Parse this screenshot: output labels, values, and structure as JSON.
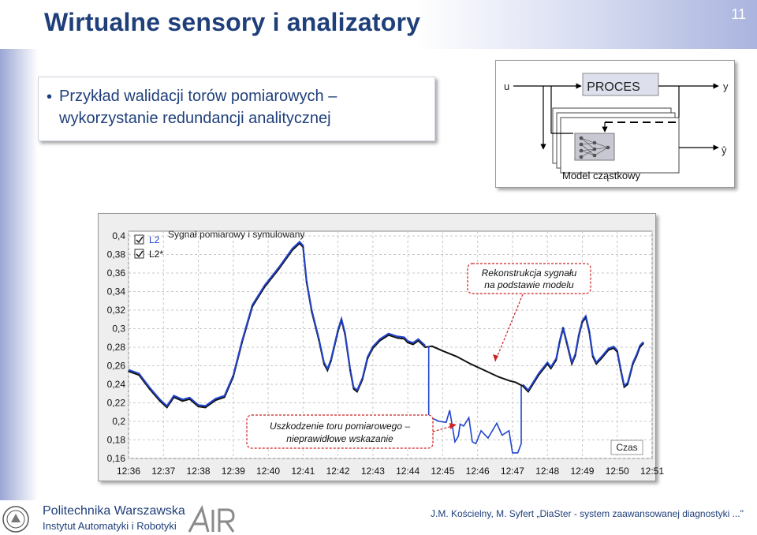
{
  "slide": {
    "title": "Wirtualne sensory i analizatory",
    "page_number": "11",
    "bullet_line1": "Przykład walidacji torów pomiarowych –",
    "bullet_line2": "wykorzystanie redundancji analitycznej"
  },
  "diagram": {
    "input_label": "u",
    "process_label": "PROCES",
    "output_label": "y",
    "estimate_label": "ŷ",
    "model_label": "Model cząstkowy"
  },
  "footer": {
    "university": "Politechnika Warszawska",
    "institute": "Instytut Automatyki i Robotyki",
    "citation": "J.M. Kościelny, M. Syfert „DiaSter - system zaawansowanej diagnostyki ...\""
  },
  "chart_data": {
    "type": "line",
    "y_ticks": [
      "0,4",
      "0,38",
      "0,36",
      "0,34",
      "0,32",
      "0,3",
      "0,28",
      "0,26",
      "0,24",
      "0,22",
      "0,2",
      "0,18",
      "0,16"
    ],
    "x_ticks": [
      "12:36",
      "12:37",
      "12:38",
      "12:39",
      "12:40",
      "12:41",
      "12:42",
      "12:43",
      "12:44",
      "12:45",
      "12:46",
      "12:47",
      "12:48",
      "12:49",
      "12:50",
      "12:51"
    ],
    "ylim": [
      0.16,
      0.4
    ],
    "xlim": [
      0,
      15
    ],
    "grid": true,
    "legend": [
      "L2",
      "L2*"
    ],
    "legend_position": "top-left",
    "series_colors": [
      "#2244cc",
      "#111111"
    ],
    "annotation_top": "Sygnał pomiarowy i symulowany",
    "annotation_reconstruction_line1": "Rekonstrukcja sygnału",
    "annotation_reconstruction_line2": "na podstawie modelu",
    "annotation_fault_line1": "Uszkodzenie toru pomiarowego –",
    "annotation_fault_line2": "nieprawidłowe wskazanie",
    "time_label": "Czas",
    "simulated": [
      [
        0,
        0.254
      ],
      [
        0.3,
        0.25
      ],
      [
        0.6,
        0.235
      ],
      [
        0.9,
        0.222
      ],
      [
        1.1,
        0.215
      ],
      [
        1.3,
        0.226
      ],
      [
        1.55,
        0.222
      ],
      [
        1.75,
        0.224
      ],
      [
        2.0,
        0.216
      ],
      [
        2.2,
        0.215
      ],
      [
        2.5,
        0.223
      ],
      [
        2.75,
        0.226
      ],
      [
        3.0,
        0.248
      ],
      [
        3.25,
        0.285
      ],
      [
        3.55,
        0.324
      ],
      [
        3.9,
        0.345
      ],
      [
        4.3,
        0.364
      ],
      [
        4.7,
        0.385
      ],
      [
        4.9,
        0.392
      ],
      [
        5.0,
        0.388
      ],
      [
        5.1,
        0.35
      ],
      [
        5.25,
        0.318
      ],
      [
        5.45,
        0.288
      ],
      [
        5.6,
        0.262
      ],
      [
        5.7,
        0.255
      ],
      [
        5.8,
        0.265
      ],
      [
        6.0,
        0.297
      ],
      [
        6.1,
        0.309
      ],
      [
        6.2,
        0.294
      ],
      [
        6.35,
        0.255
      ],
      [
        6.45,
        0.235
      ],
      [
        6.55,
        0.232
      ],
      [
        6.7,
        0.245
      ],
      [
        6.85,
        0.268
      ],
      [
        7.0,
        0.279
      ],
      [
        7.2,
        0.287
      ],
      [
        7.45,
        0.293
      ],
      [
        7.7,
        0.29
      ],
      [
        7.9,
        0.289
      ],
      [
        8.0,
        0.285
      ],
      [
        8.15,
        0.283
      ],
      [
        8.3,
        0.287
      ],
      [
        8.5,
        0.28
      ],
      [
        8.7,
        0.281
      ],
      [
        9.0,
        0.276
      ],
      [
        9.4,
        0.27
      ],
      [
        9.8,
        0.262
      ],
      [
        10.2,
        0.255
      ],
      [
        10.6,
        0.248
      ],
      [
        10.9,
        0.244
      ],
      [
        11.1,
        0.242
      ],
      [
        11.3,
        0.238
      ],
      [
        11.45,
        0.232
      ],
      [
        11.55,
        0.238
      ],
      [
        11.75,
        0.25
      ],
      [
        12.0,
        0.262
      ],
      [
        12.1,
        0.257
      ],
      [
        12.25,
        0.266
      ],
      [
        12.35,
        0.285
      ],
      [
        12.45,
        0.3
      ],
      [
        12.55,
        0.285
      ],
      [
        12.7,
        0.262
      ],
      [
        12.8,
        0.271
      ],
      [
        12.9,
        0.292
      ],
      [
        13.0,
        0.307
      ],
      [
        13.1,
        0.312
      ],
      [
        13.2,
        0.296
      ],
      [
        13.3,
        0.27
      ],
      [
        13.4,
        0.262
      ],
      [
        13.55,
        0.268
      ],
      [
        13.75,
        0.277
      ],
      [
        13.9,
        0.279
      ],
      [
        14.0,
        0.275
      ],
      [
        14.1,
        0.255
      ],
      [
        14.2,
        0.237
      ],
      [
        14.3,
        0.24
      ],
      [
        14.45,
        0.262
      ],
      [
        14.55,
        0.27
      ],
      [
        14.65,
        0.28
      ],
      [
        14.75,
        0.284
      ]
    ],
    "measured_fault": [
      [
        8.6,
        0.281
      ],
      [
        8.6,
        0.205
      ],
      [
        8.9,
        0.2
      ],
      [
        9.1,
        0.199
      ],
      [
        9.2,
        0.212
      ],
      [
        9.35,
        0.178
      ],
      [
        9.45,
        0.184
      ],
      [
        9.5,
        0.197
      ],
      [
        9.6,
        0.195
      ],
      [
        9.75,
        0.204
      ],
      [
        9.85,
        0.178
      ],
      [
        9.95,
        0.176
      ],
      [
        10.1,
        0.19
      ],
      [
        10.3,
        0.182
      ],
      [
        10.55,
        0.198
      ],
      [
        10.7,
        0.185
      ],
      [
        10.9,
        0.19
      ],
      [
        11.0,
        0.166
      ],
      [
        11.15,
        0.166
      ],
      [
        11.25,
        0.176
      ],
      [
        11.25,
        0.238
      ]
    ]
  }
}
